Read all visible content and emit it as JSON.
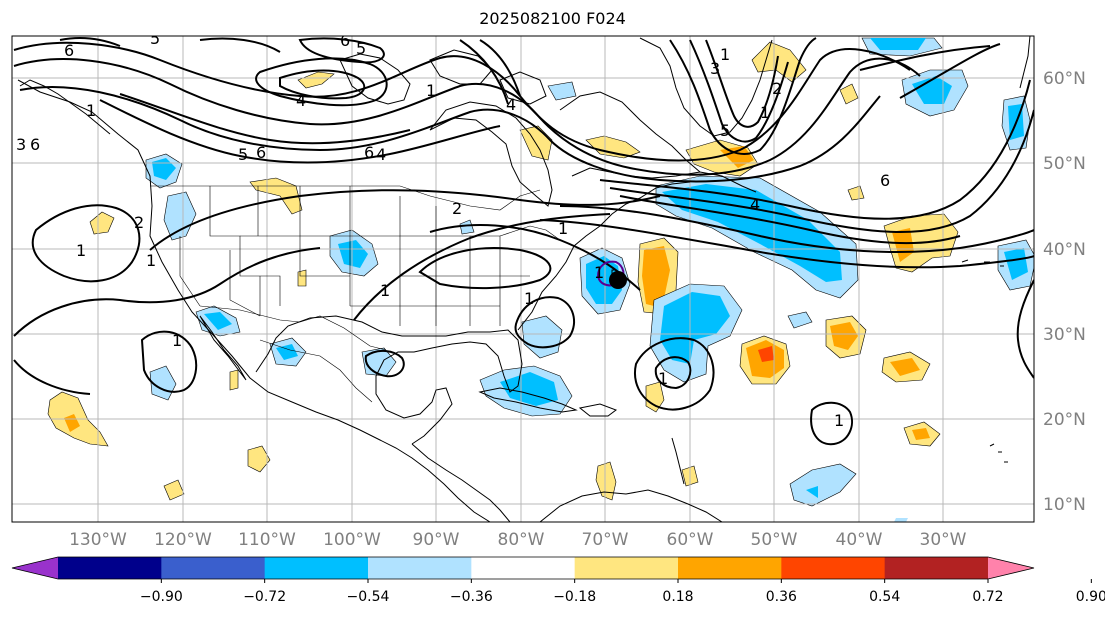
{
  "title": "2025082100 F024",
  "map": {
    "lon_ticks": [
      "130°W",
      "120°W",
      "110°W",
      "100°W",
      "90°W",
      "80°W",
      "70°W",
      "60°W",
      "50°W",
      "40°W",
      "30°W"
    ],
    "lat_ticks": [
      "60°N",
      "50°N",
      "40°N",
      "30°N",
      "20°N",
      "10°N"
    ],
    "grid": true,
    "projection": "PlateCarree",
    "extent": {
      "lon_min": -140,
      "lon_max": -19,
      "lat_min": 8,
      "lat_max": 65
    },
    "contour_labels": [
      "6",
      "5",
      "6",
      "5",
      "4",
      "5",
      "6",
      "4",
      "3",
      "2",
      "1",
      "1",
      "1",
      "2",
      "1",
      "1",
      "6",
      "5",
      "4",
      "3",
      "2",
      "1",
      "1",
      "1",
      "1",
      "1",
      "6",
      "6",
      "4",
      "1",
      "1",
      "1"
    ],
    "storm_marker": "hurricane-center"
  },
  "colorbar": {
    "tick_labels": [
      "−0.90",
      "−0.72",
      "−0.54",
      "−0.36",
      "−0.18",
      "0.18",
      "0.36",
      "0.54",
      "0.72",
      "0.90"
    ],
    "colors": [
      "#9932cc",
      "#00008b",
      "#3a5fcd",
      "#00bfff",
      "#b0e2ff",
      "#ffffff",
      "#ffe680",
      "#ffa500",
      "#ff4500",
      "#b22222",
      "#ff82ab"
    ]
  }
}
